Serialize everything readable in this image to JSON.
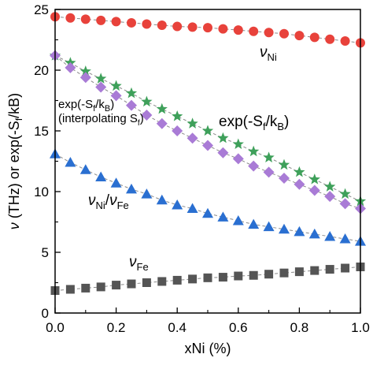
{
  "chart_data": {
    "type": "scatter",
    "xlabel": "xNi (%)",
    "ylabel": "ν (THz)  or exp(-Sf/kB)",
    "ylabel_parts": {
      "nu": "ν",
      "main": " (THz)  or exp(-S",
      "sub_f": "f",
      "tail": "/kB)"
    },
    "xlim": [
      0,
      1.0
    ],
    "ylim": [
      0,
      25
    ],
    "x_ticks": [
      0.0,
      0.2,
      0.4,
      0.6,
      0.8,
      1.0
    ],
    "x_tick_labels": [
      "0.0",
      "0.2",
      "0.4",
      "0.6",
      "0.8",
      "1.0"
    ],
    "y_ticks": [
      0,
      5,
      10,
      15,
      20,
      25
    ],
    "y_tick_labels": [
      "0",
      "5",
      "10",
      "15",
      "20",
      "25"
    ],
    "grid": false,
    "legend": "none",
    "x": [
      0.0,
      0.05,
      0.1,
      0.15,
      0.2,
      0.25,
      0.3,
      0.35,
      0.4,
      0.45,
      0.5,
      0.55,
      0.6,
      0.65,
      0.7,
      0.75,
      0.8,
      0.85,
      0.9,
      0.95,
      1.0
    ],
    "series": [
      {
        "key": "nu_ni",
        "marker": "circle",
        "color": "#e8423b",
        "values": [
          24.4,
          24.3,
          24.2,
          24.1,
          24.0,
          23.9,
          23.8,
          23.7,
          23.6,
          23.55,
          23.5,
          23.4,
          23.3,
          23.2,
          23.1,
          23.0,
          22.85,
          22.7,
          22.55,
          22.4,
          22.25
        ]
      },
      {
        "key": "exp_sf",
        "marker": "star",
        "color": "#3ea05a",
        "values": [
          21.2,
          20.6,
          19.9,
          19.3,
          18.7,
          18.1,
          17.4,
          16.8,
          16.2,
          15.6,
          15.0,
          14.4,
          13.9,
          13.3,
          12.8,
          12.2,
          11.6,
          11.0,
          10.4,
          9.8,
          9.2
        ]
      },
      {
        "key": "exp_sf_interp",
        "marker": "diamond",
        "color": "#a97bd6",
        "values": [
          21.2,
          20.2,
          19.4,
          18.6,
          17.9,
          17.1,
          16.3,
          15.6,
          15.0,
          14.4,
          13.8,
          13.2,
          12.7,
          12.1,
          11.6,
          11.1,
          10.6,
          10.1,
          9.6,
          9.0,
          8.6
        ]
      },
      {
        "key": "nu_ratio",
        "marker": "triangle",
        "color": "#2a6fd1",
        "values": [
          13.1,
          12.4,
          11.8,
          11.2,
          10.7,
          10.2,
          9.8,
          9.3,
          8.9,
          8.6,
          8.2,
          7.9,
          7.6,
          7.3,
          7.1,
          6.9,
          6.7,
          6.5,
          6.3,
          6.1,
          5.9
        ]
      },
      {
        "key": "nu_fe",
        "marker": "square",
        "color": "#555555",
        "values": [
          1.85,
          1.95,
          2.05,
          2.15,
          2.3,
          2.4,
          2.5,
          2.6,
          2.7,
          2.8,
          2.9,
          2.95,
          3.05,
          3.1,
          3.2,
          3.3,
          3.4,
          3.5,
          3.6,
          3.7,
          3.8
        ]
      }
    ],
    "annotations": {
      "nu_ni": {
        "sym": "ν",
        "sub": "Ni"
      },
      "exp_big": {
        "pre": "exp(-S",
        "sub1": "f",
        "mid": "/k",
        "sub2": "B",
        "post": ")"
      },
      "exp_small": {
        "pre": "exp(-S",
        "sub1": "f",
        "mid": "/k",
        "sub2": "B",
        "post": ")"
      },
      "interp": {
        "pre": "(interpolating S",
        "sub": "f",
        "post": ")"
      },
      "ratio": {
        "sym1": "ν",
        "sub1": "Ni",
        "slash": "/",
        "sym2": "ν",
        "sub2": "Fe"
      },
      "nu_fe": {
        "sym": "ν",
        "sub": "Fe"
      }
    }
  }
}
